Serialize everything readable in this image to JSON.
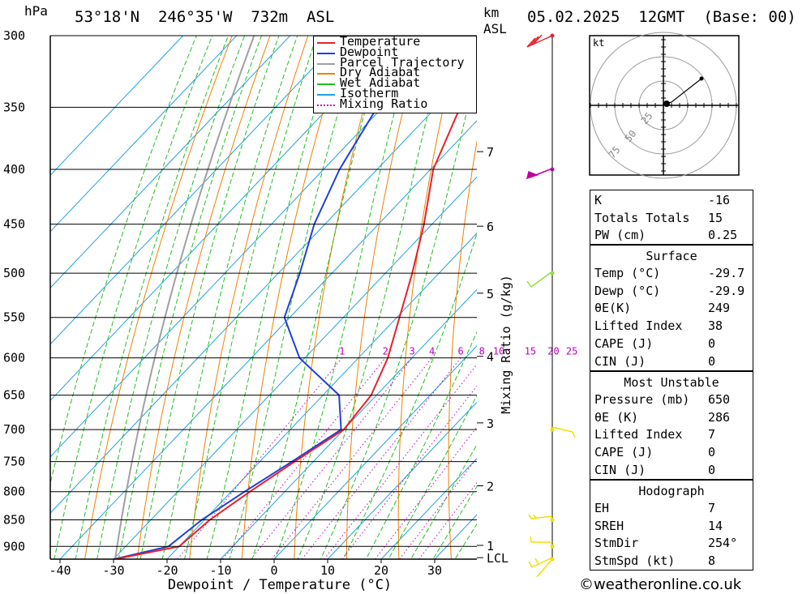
{
  "header": {
    "hpa_unit": "hPa",
    "location": "53°18'N  246°35'W  732m  ASL",
    "km_unit": "km",
    "asl_unit": "ASL",
    "datetime": "05.02.2025  12GMT  (Base: 00)"
  },
  "chart_data": {
    "type": "skew-t",
    "xlabel": "Dewpoint / Temperature (°C)",
    "ylabel": "hPa",
    "mixing_ratio_axis_label": "Mixing Ratio (g/kg)",
    "x_ticks": [
      -40,
      -30,
      -20,
      -10,
      0,
      10,
      20,
      30
    ],
    "pressure_ticks": [
      300,
      350,
      400,
      450,
      500,
      550,
      600,
      650,
      700,
      750,
      800,
      850,
      900
    ],
    "km_ticks": [
      {
        "label": "7",
        "p": 385
      },
      {
        "label": "6",
        "p": 452
      },
      {
        "label": "5",
        "p": 522
      },
      {
        "label": "4",
        "p": 598
      },
      {
        "label": "3",
        "p": 690
      },
      {
        "label": "2",
        "p": 790
      },
      {
        "label": "1",
        "p": 898
      },
      {
        "label": "LCL",
        "p": 922
      }
    ],
    "mixing_ratio_labels": [
      "1",
      "2",
      "3",
      "4",
      "6",
      "8",
      "10",
      "15",
      "20",
      "25"
    ],
    "mixing_ratio_values": [
      1,
      2,
      3,
      4,
      6,
      8,
      10,
      15,
      20,
      25
    ],
    "legend": [
      {
        "name": "Temperature",
        "color": "#e8202a",
        "style": "solid"
      },
      {
        "name": "Dewpoint",
        "color": "#2040d8",
        "style": "solid"
      },
      {
        "name": "Parcel Trajectory",
        "color": "#a0a0a0",
        "style": "solid"
      },
      {
        "name": "Dry Adiabat",
        "color": "#f08000",
        "style": "solid"
      },
      {
        "name": "Wet Adiabat",
        "color": "#20c020",
        "style": "solid"
      },
      {
        "name": "Isotherm",
        "color": "#20a0e0",
        "style": "solid"
      },
      {
        "name": "Mixing Ratio",
        "color": "#c000c0",
        "style": "dotted"
      }
    ],
    "temperature": [
      {
        "p": 925,
        "t": -29.7
      },
      {
        "p": 900,
        "t": -20.0
      },
      {
        "p": 850,
        "t": -19.0
      },
      {
        "p": 800,
        "t": -16.5
      },
      {
        "p": 750,
        "t": -13.5
      },
      {
        "p": 700,
        "t": -10.0
      },
      {
        "p": 650,
        "t": -11.0
      },
      {
        "p": 600,
        "t": -14.5
      },
      {
        "p": 550,
        "t": -19.5
      },
      {
        "p": 500,
        "t": -25.0
      },
      {
        "p": 450,
        "t": -31.5
      },
      {
        "p": 400,
        "t": -39.5
      },
      {
        "p": 350,
        "t": -45.5
      },
      {
        "p": 300,
        "t": -53.5
      }
    ],
    "dewpoint": [
      {
        "p": 925,
        "t": -29.9
      },
      {
        "p": 900,
        "t": -22.0
      },
      {
        "p": 850,
        "t": -20.5
      },
      {
        "p": 800,
        "t": -17.5
      },
      {
        "p": 750,
        "t": -14.0
      },
      {
        "p": 700,
        "t": -10.5
      },
      {
        "p": 650,
        "t": -17.0
      },
      {
        "p": 600,
        "t": -31.0
      },
      {
        "p": 550,
        "t": -41.0
      },
      {
        "p": 500,
        "t": -46.0
      },
      {
        "p": 450,
        "t": -52.0
      },
      {
        "p": 400,
        "t": -57.0
      },
      {
        "p": 350,
        "t": -61.0
      },
      {
        "p": 300,
        "t": -66.0
      }
    ],
    "wind_barbs_p": [
      300,
      400,
      500,
      700,
      850,
      900,
      925
    ],
    "grid": true
  },
  "hodograph": {
    "unit": "kt",
    "ring_labels": [
      "25",
      "50",
      "75"
    ]
  },
  "indices": {
    "general": [
      {
        "k": "K",
        "v": "-16"
      },
      {
        "k": "Totals Totals",
        "v": "15"
      },
      {
        "k": "PW (cm)",
        "v": "0.25"
      }
    ],
    "surface_title": "Surface",
    "surface": [
      {
        "k": "Temp (°C)",
        "v": "-29.7"
      },
      {
        "k": "Dewp (°C)",
        "v": "-29.9"
      },
      {
        "k": "θE(K)",
        "v": "249"
      },
      {
        "k": "Lifted Index",
        "v": "38"
      },
      {
        "k": "CAPE (J)",
        "v": "0"
      },
      {
        "k": "CIN (J)",
        "v": "0"
      }
    ],
    "mu_title": "Most Unstable",
    "mu": [
      {
        "k": "Pressure (mb)",
        "v": "650"
      },
      {
        "k": "θE (K)",
        "v": "286"
      },
      {
        "k": "Lifted Index",
        "v": "7"
      },
      {
        "k": "CAPE (J)",
        "v": "0"
      },
      {
        "k": "CIN (J)",
        "v": "0"
      }
    ],
    "hodo_title": "Hodograph",
    "hodo": [
      {
        "k": "EH",
        "v": "7"
      },
      {
        "k": "SREH",
        "v": "14"
      },
      {
        "k": "StmDir",
        "v": "254°"
      },
      {
        "k": "StmSpd (kt)",
        "v": "8"
      }
    ]
  },
  "footer": {
    "credit": "©weatheronline.co.uk"
  },
  "colors": {
    "temperature": "#e8202a",
    "dewpoint": "#2040d8",
    "dry": "#f08000",
    "wet": "#20c020",
    "iso": "#20a0e0",
    "mix": "#c000c0",
    "parcel": "#a0a0a0"
  }
}
